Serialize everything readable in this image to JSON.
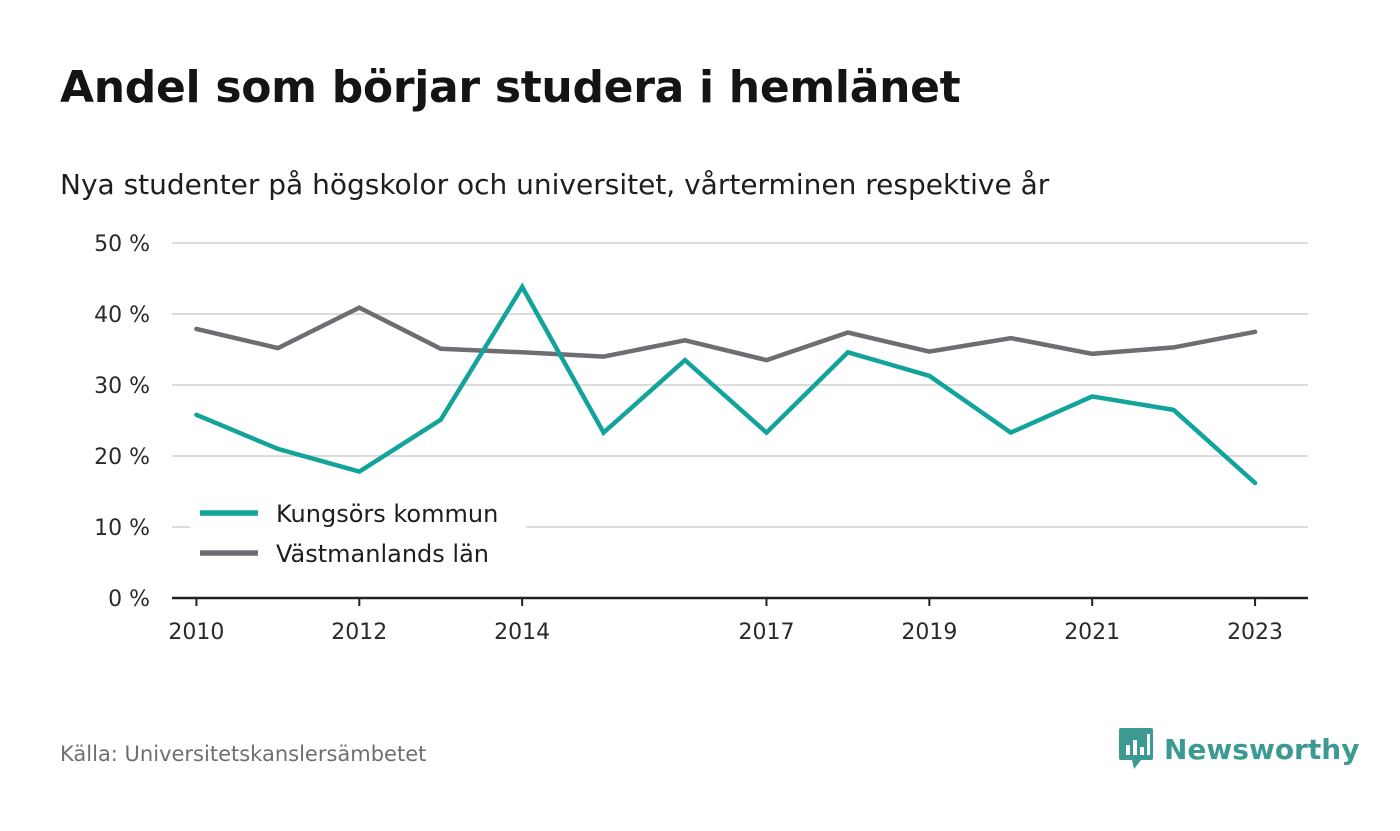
{
  "header": {
    "title": "Andel som börjar studera i hemlänet",
    "subtitle": "Nya studenter på högskolor och universitet, vårterminen respektive år"
  },
  "footer": {
    "source": "Källa: Universitetskanslersämbetet",
    "brand": "Newsworthy"
  },
  "colors": {
    "kungsor": "#12a39a",
    "vastmanland": "#6e6d72",
    "grid": "#dcdcdc",
    "axis": "#222222",
    "brand": "#3c9a93"
  },
  "icons": {
    "brand": "bar-chart-speech-bubble-icon"
  },
  "chart_data": {
    "type": "line",
    "title": "Andel som börjar studera i hemlänet",
    "subtitle": "Nya studenter på högskolor och universitet, vårterminen respektive år",
    "x": [
      2010,
      2011,
      2012,
      2013,
      2014,
      2015,
      2016,
      2017,
      2018,
      2019,
      2020,
      2021,
      2022,
      2023
    ],
    "xticks": [
      2010,
      2012,
      2014,
      2017,
      2019,
      2021,
      2023
    ],
    "xlim": [
      2009.7,
      2023.65
    ],
    "ylim": [
      0,
      50
    ],
    "yticks": [
      0,
      10,
      20,
      30,
      40,
      50
    ],
    "ytick_labels": [
      "0 %",
      "10 %",
      "20 %",
      "30 %",
      "40 %",
      "50 %"
    ],
    "grid": true,
    "legend_position": "bottom-left",
    "series": [
      {
        "name": "Kungsörs kommun",
        "values": [
          25.8,
          21.0,
          17.8,
          25.1,
          43.8,
          23.3,
          33.5,
          23.3,
          34.6,
          31.3,
          23.3,
          28.4,
          26.5,
          16.2
        ]
      },
      {
        "name": "Västmanlands län",
        "values": [
          37.9,
          35.2,
          40.9,
          35.1,
          34.6,
          34.0,
          36.3,
          33.5,
          37.4,
          34.7,
          36.6,
          34.4,
          35.3,
          37.5
        ]
      }
    ]
  }
}
